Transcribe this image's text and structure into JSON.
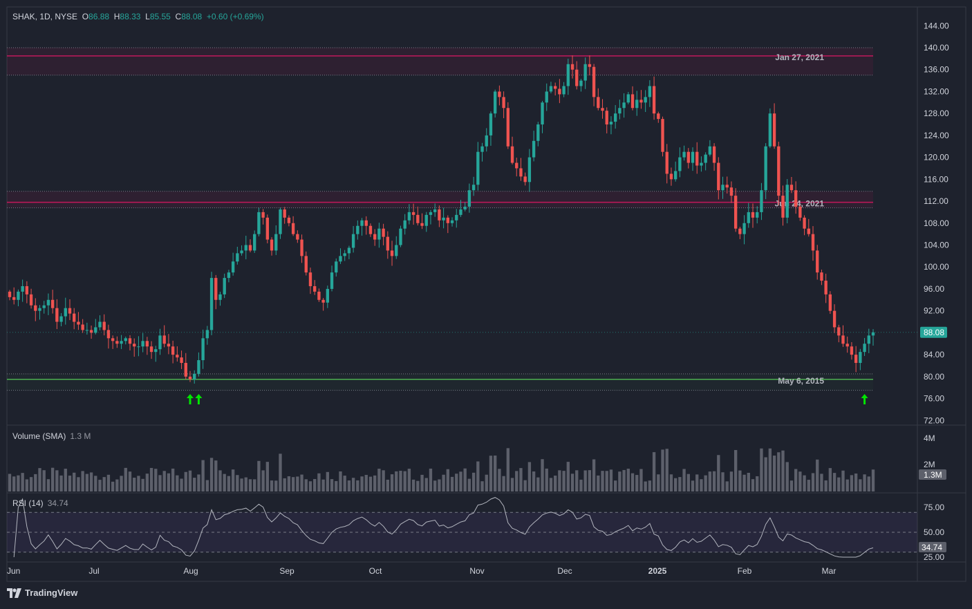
{
  "header": {
    "symbol": "SHAK, 1D, NYSE",
    "o_label": "O",
    "o_value": "86.88",
    "h_label": "H",
    "h_value": "88.33",
    "l_label": "L",
    "l_value": "85.55",
    "c_label": "C",
    "c_value": "88.08",
    "change": "+0.60 (+0.69%)"
  },
  "volume_pane": {
    "label": "Volume (SMA)",
    "value": "1.3 M",
    "badge": "1.3M",
    "ticks": [
      "4M",
      "2M"
    ]
  },
  "rsi_pane": {
    "label": "RSI (14)",
    "value": "34.74",
    "badge": "34.74",
    "ticks": [
      "75.00",
      "50.00",
      "25.00"
    ]
  },
  "price_badge": "88.08",
  "price_ticks": [
    "144.00",
    "140.00",
    "136.00",
    "132.00",
    "128.00",
    "124.00",
    "120.00",
    "116.00",
    "112.00",
    "108.00",
    "104.00",
    "100.00",
    "96.00",
    "92.00",
    "88.00",
    "84.00",
    "80.00",
    "76.00",
    "72.00"
  ],
  "time_ticks": [
    "Jun",
    "Jul",
    "Aug",
    "Sep",
    "Oct",
    "Nov",
    "Dec",
    "2025",
    "Feb",
    "Mar"
  ],
  "levels": [
    {
      "label": "Jan 27, 2021",
      "price": 138.5,
      "zone": [
        135.0,
        140.0
      ],
      "color": "#c2185b"
    },
    {
      "label": "Jun 24, 2021",
      "price": 111.8,
      "zone": [
        110.8,
        113.8
      ],
      "color": "#c2185b"
    },
    {
      "label": "May 6, 2015",
      "price": 79.5,
      "zone": [
        77.5,
        80.5
      ],
      "color": "#4caf50"
    }
  ],
  "brand": "TradingView",
  "colors": {
    "up": "#26a69a",
    "down": "#ef5350",
    "background": "#1e222d",
    "grid": "#2a2e39",
    "arrow": "#00e600"
  },
  "chart_data": {
    "type": "candlestick",
    "title": "SHAK, 1D, NYSE",
    "ylim": [
      72,
      144
    ],
    "date_range": [
      "2024-05-31",
      "2025-03-14"
    ],
    "month_labels": [
      "Jun",
      "Jul",
      "Aug",
      "Sep",
      "Oct",
      "Nov",
      "Dec",
      "2025",
      "Feb",
      "Mar"
    ],
    "closes": [
      94.5,
      94,
      95.5,
      96.5,
      95,
      93,
      92,
      92.5,
      93,
      94,
      92.5,
      90,
      91,
      92.5,
      91.5,
      90,
      89.5,
      88.5,
      88.5,
      88,
      89,
      90,
      88.5,
      87,
      86.5,
      86,
      86.5,
      87,
      86,
      85.5,
      85.5,
      86.5,
      85.5,
      84.5,
      85,
      87.5,
      86,
      85.5,
      84,
      83.5,
      82.5,
      80,
      79.5,
      80.5,
      83,
      87,
      88.5,
      98,
      94,
      95,
      98,
      99,
      101,
      102.5,
      103,
      104,
      103,
      106,
      110,
      109,
      105,
      103,
      106,
      110.5,
      109,
      108,
      106,
      105,
      102,
      99,
      96.5,
      95.5,
      94,
      93.5,
      96,
      99,
      101,
      102,
      102.5,
      103.5,
      106,
      107.5,
      108.5,
      107.5,
      106,
      105,
      107,
      105.5,
      103,
      102,
      104,
      107,
      108.5,
      110,
      109.5,
      108,
      107.5,
      109.5,
      110,
      110.5,
      108.5,
      109,
      108,
      108.5,
      109.5,
      110.5,
      111,
      114,
      115,
      121,
      122,
      124,
      128,
      132,
      131,
      129,
      122,
      119,
      118,
      116.5,
      115.5,
      120,
      123,
      126,
      130,
      132,
      133,
      132.5,
      131.5,
      133,
      137,
      136,
      133,
      134,
      137,
      136.5,
      131,
      129,
      128.5,
      126,
      126.5,
      128,
      129,
      130,
      131.5,
      129,
      130.5,
      130,
      131,
      133,
      128,
      127,
      121,
      117,
      116,
      117.5,
      120,
      121,
      119,
      121,
      118.5,
      119,
      120.5,
      122,
      119,
      114,
      115,
      114.5,
      113,
      107,
      106,
      108,
      110,
      109,
      110,
      114,
      122,
      128,
      122,
      113,
      109,
      115,
      114,
      111,
      109,
      107,
      106,
      103,
      99,
      97.5,
      95,
      92,
      89,
      87.5,
      86,
      85.5,
      84,
      82.5,
      84.5,
      86,
      87.5,
      88.08
    ],
    "volume_sma": "1.3M",
    "rsi_last": 34.74,
    "rsi_levels": [
      70,
      50,
      30
    ],
    "markers": [
      {
        "date": "Jul 23, 2024",
        "type": "arrow-up"
      },
      {
        "date": "Jul 24, 2024",
        "type": "arrow-up"
      },
      {
        "date": "Mar 11, 2025",
        "type": "arrow-up"
      }
    ]
  }
}
